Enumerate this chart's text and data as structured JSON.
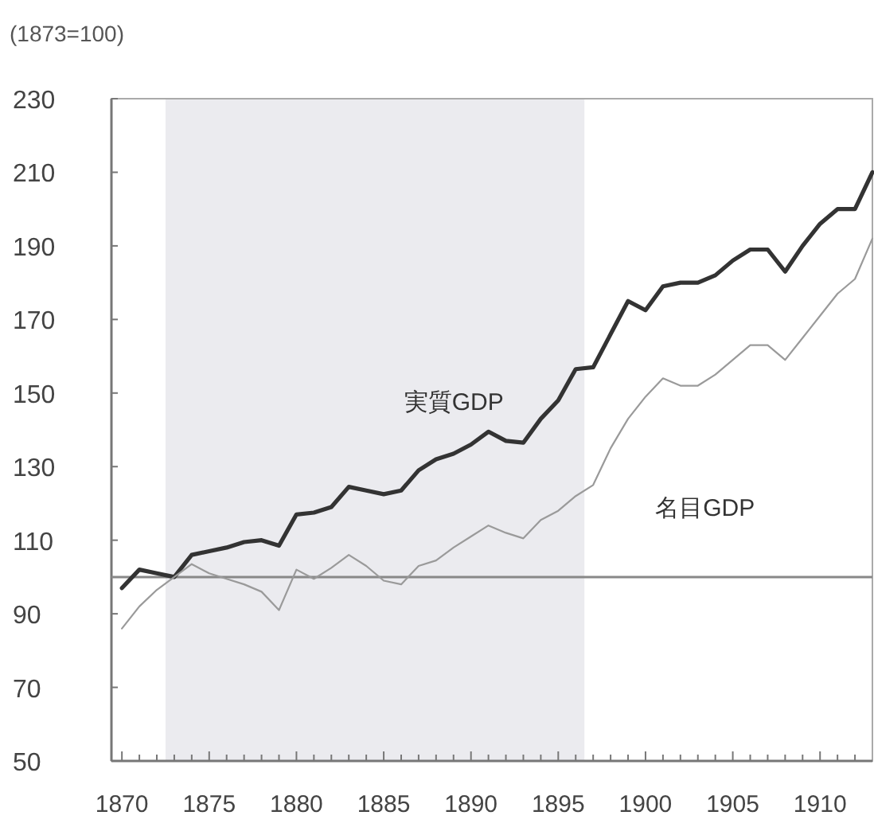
{
  "chart_data": {
    "type": "line",
    "ylabel": "(1873=100)",
    "x": [
      1870,
      1871,
      1872,
      1873,
      1874,
      1875,
      1876,
      1877,
      1878,
      1879,
      1880,
      1881,
      1882,
      1883,
      1884,
      1885,
      1886,
      1887,
      1888,
      1889,
      1890,
      1891,
      1892,
      1893,
      1894,
      1895,
      1896,
      1897,
      1898,
      1899,
      1900,
      1901,
      1902,
      1903,
      1904,
      1905,
      1906,
      1907,
      1908,
      1909,
      1910,
      1911,
      1912,
      1913
    ],
    "series": [
      {
        "name": "実質GDP",
        "color": "#333333",
        "values": [
          97,
          102,
          101,
          100,
          106,
          107,
          108,
          109.5,
          110,
          108.5,
          117,
          117.5,
          119,
          124.5,
          123.5,
          122.5,
          123.5,
          129,
          132,
          133.5,
          136,
          139.5,
          137,
          136.5,
          143,
          148,
          156.5,
          157,
          166,
          175,
          172.5,
          179,
          180,
          180,
          182,
          186,
          189,
          189,
          183,
          190,
          196,
          200,
          200,
          210
        ]
      },
      {
        "name": "名目GDP",
        "color": "#9a9a9a",
        "values": [
          86,
          92,
          96.5,
          100,
          103.5,
          101,
          99.5,
          98,
          96,
          91,
          102,
          99.5,
          102.5,
          106,
          103,
          99,
          98,
          103,
          104.5,
          108,
          111,
          114,
          112,
          110.5,
          115.5,
          118,
          122,
          125,
          135,
          143,
          149,
          154,
          152,
          152,
          155,
          159,
          163,
          163,
          159,
          165,
          171,
          177,
          181,
          192
        ]
      }
    ],
    "xlim": [
      1869.4,
      1913
    ],
    "xticks": [
      1870,
      {
        "value": 1871,
        "label": null
      },
      {
        "value": 1872,
        "label": null
      },
      {
        "value": 1873,
        "label": null
      },
      {
        "value": 1874,
        "label": null
      },
      1875,
      {
        "value": 1876,
        "label": null
      },
      {
        "value": 1877,
        "label": null
      },
      {
        "value": 1878,
        "label": null
      },
      {
        "value": 1879,
        "label": null
      },
      1880,
      {
        "value": 1881,
        "label": null
      },
      {
        "value": 1882,
        "label": null
      },
      {
        "value": 1883,
        "label": null
      },
      {
        "value": 1884,
        "label": null
      },
      1885,
      {
        "value": 1886,
        "label": null
      },
      {
        "value": 1887,
        "label": null
      },
      {
        "value": 1888,
        "label": null
      },
      {
        "value": 1889,
        "label": null
      },
      1890,
      {
        "value": 1891,
        "label": null
      },
      {
        "value": 1892,
        "label": null
      },
      {
        "value": 1893,
        "label": null
      },
      {
        "value": 1894,
        "label": null
      },
      1895,
      {
        "value": 1896,
        "label": null
      },
      {
        "value": 1897,
        "label": null
      },
      {
        "value": 1898,
        "label": null
      },
      {
        "value": 1899,
        "label": null
      },
      1900,
      {
        "value": 1901,
        "label": null
      },
      {
        "value": 1902,
        "label": null
      },
      {
        "value": 1903,
        "label": null
      },
      {
        "value": 1904,
        "label": null
      },
      1905,
      {
        "value": 1906,
        "label": null
      },
      {
        "value": 1907,
        "label": null
      },
      {
        "value": 1908,
        "label": null
      },
      {
        "value": 1909,
        "label": null
      },
      1910,
      {
        "value": 1911,
        "label": null
      },
      {
        "value": 1912,
        "label": null
      }
    ],
    "ylim": [
      50,
      230
    ],
    "yticks": [
      50,
      70,
      90,
      110,
      130,
      150,
      170,
      190,
      210,
      230
    ],
    "ref_lines": [
      {
        "axis": "y",
        "value": 100,
        "color": "#888888"
      }
    ],
    "bands": [
      {
        "axis": "x",
        "from": 1872.5,
        "to": 1896.5,
        "color": "#ebebef"
      }
    ],
    "grid": false,
    "marker": "none",
    "line_style": "solid"
  }
}
